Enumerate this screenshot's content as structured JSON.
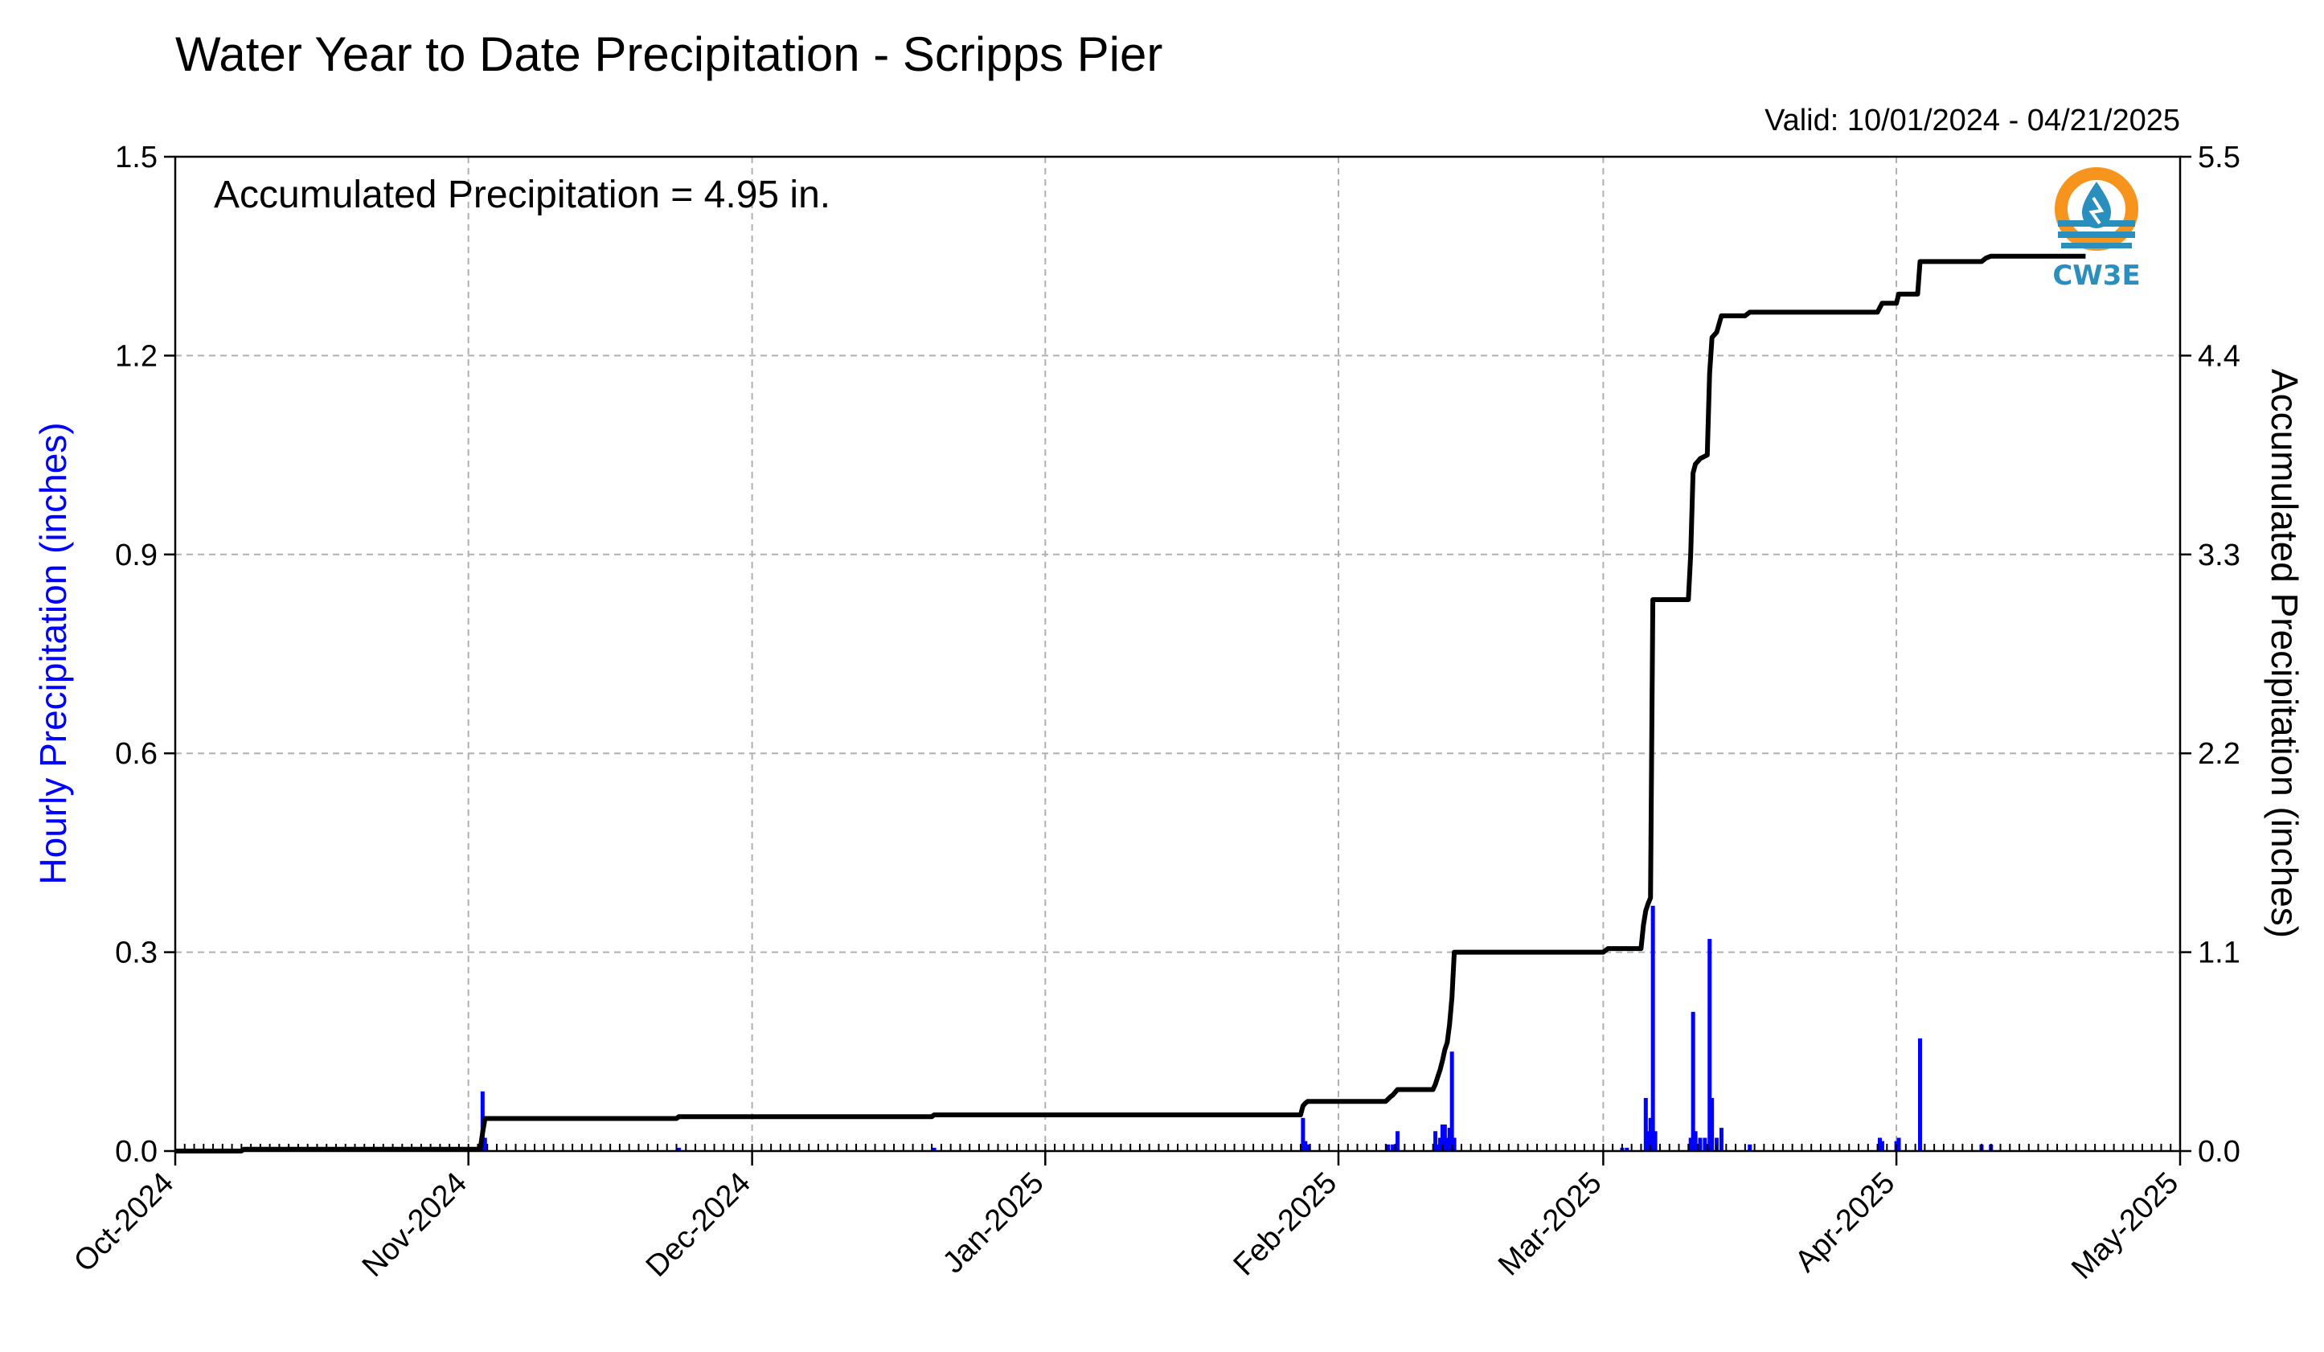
{
  "colors": {
    "hourly": "#0000ff",
    "accumulated": "#000000",
    "grid": "#b0b0b0",
    "logo_orange": "#f7941d",
    "logo_teal": "#2a8fbd"
  },
  "logo": {
    "text": "CW3E",
    "icon": "water-drop-logo-icon"
  },
  "chart_data": {
    "type": "bar+line",
    "title": "Water Year to Date Precipitation - Scripps Pier",
    "subtitle": "Valid: 10/01/2024 - 04/21/2025",
    "annotation": "Accumulated Precipitation = 4.95 in.",
    "ylabel_left": "Hourly Precipitation (inches)",
    "ylabel_right": "Accumulated Precipitation (inches)",
    "ylim_left": [
      0,
      1.5
    ],
    "ylim_right": [
      0,
      5.5
    ],
    "xlim": [
      "2024-10-01",
      "2025-05-01"
    ],
    "yticks_left": [
      "0.0",
      "0.3",
      "0.6",
      "0.9",
      "1.2",
      "1.5"
    ],
    "yticks_right": [
      "0.0",
      "1.1",
      "2.2",
      "3.3",
      "4.4",
      "5.5"
    ],
    "xticks": [
      {
        "date": "2024-10-01",
        "label": "Oct-2024"
      },
      {
        "date": "2024-11-01",
        "label": "Nov-2024"
      },
      {
        "date": "2024-12-01",
        "label": "Dec-2024"
      },
      {
        "date": "2025-01-01",
        "label": "Jan-2025"
      },
      {
        "date": "2025-02-01",
        "label": "Feb-2025"
      },
      {
        "date": "2025-03-01",
        "label": "Mar-2025"
      },
      {
        "date": "2025-04-01",
        "label": "Apr-2025"
      },
      {
        "date": "2025-05-01",
        "label": "May-2025"
      }
    ],
    "grid": true,
    "hourly_series": {
      "name": "Hourly Precipitation",
      "points": [
        [
          "2024-10-08T00",
          0.003
        ],
        [
          "2024-11-02T12",
          0.09
        ],
        [
          "2024-11-02T18",
          0.02
        ],
        [
          "2024-11-23T06",
          0.005
        ],
        [
          "2024-12-20T06",
          0.005
        ],
        [
          "2025-01-28T06",
          0.05
        ],
        [
          "2025-01-28T12",
          0.015
        ],
        [
          "2025-01-28T18",
          0.01
        ],
        [
          "2025-02-06T06",
          0.01
        ],
        [
          "2025-02-06T18",
          0.01
        ],
        [
          "2025-02-07T06",
          0.03
        ],
        [
          "2025-02-11T06",
          0.03
        ],
        [
          "2025-02-11T12",
          0.01
        ],
        [
          "2025-02-11T18",
          0.02
        ],
        [
          "2025-02-12T00",
          0.04
        ],
        [
          "2025-02-12T06",
          0.04
        ],
        [
          "2025-02-12T12",
          0.02
        ],
        [
          "2025-02-12T18",
          0.035
        ],
        [
          "2025-02-13T00",
          0.15
        ],
        [
          "2025-02-13T06",
          0.02
        ],
        [
          "2025-03-03T00",
          0.005
        ],
        [
          "2025-03-03T12",
          0.005
        ],
        [
          "2025-03-05T12",
          0.08
        ],
        [
          "2025-03-05T18",
          0.03
        ],
        [
          "2025-03-06T00",
          0.05
        ],
        [
          "2025-03-06T06",
          0.37
        ],
        [
          "2025-03-06T12",
          0.03
        ],
        [
          "2025-03-10T06",
          0.02
        ],
        [
          "2025-03-10T12",
          0.21
        ],
        [
          "2025-03-10T18",
          0.03
        ],
        [
          "2025-03-11T06",
          0.02
        ],
        [
          "2025-03-11T18",
          0.02
        ],
        [
          "2025-03-12T06",
          0.32
        ],
        [
          "2025-03-12T12",
          0.08
        ],
        [
          "2025-03-13T00",
          0.02
        ],
        [
          "2025-03-13T12",
          0.035
        ],
        [
          "2025-03-16T12",
          0.01
        ],
        [
          "2025-03-30T06",
          0.02
        ],
        [
          "2025-03-30T12",
          0.015
        ],
        [
          "2025-04-01T00",
          0.015
        ],
        [
          "2025-04-01T06",
          0.02
        ],
        [
          "2025-04-03T12",
          0.17
        ],
        [
          "2025-04-10T00",
          0.01
        ],
        [
          "2025-04-11T00",
          0.01
        ]
      ]
    },
    "accumulated_series": {
      "name": "Accumulated Precipitation",
      "points": [
        [
          "2024-10-01T00",
          0.0
        ],
        [
          "2024-10-08T00",
          0.0
        ],
        [
          "2024-10-08T06",
          0.01
        ],
        [
          "2024-11-02T06",
          0.01
        ],
        [
          "2024-11-02T12",
          0.1
        ],
        [
          "2024-11-02T18",
          0.18
        ],
        [
          "2024-11-23T00",
          0.18
        ],
        [
          "2024-11-23T06",
          0.19
        ],
        [
          "2024-12-20T00",
          0.19
        ],
        [
          "2024-12-20T06",
          0.2
        ],
        [
          "2025-01-28T00",
          0.2
        ],
        [
          "2025-01-28T06",
          0.25
        ],
        [
          "2025-01-28T12",
          0.265
        ],
        [
          "2025-01-28T18",
          0.275
        ],
        [
          "2025-02-06T00",
          0.275
        ],
        [
          "2025-02-06T12",
          0.3
        ],
        [
          "2025-02-06T18",
          0.31
        ],
        [
          "2025-02-07T06",
          0.34
        ],
        [
          "2025-02-11T00",
          0.34
        ],
        [
          "2025-02-11T06",
          0.37
        ],
        [
          "2025-02-11T12",
          0.41
        ],
        [
          "2025-02-11T18",
          0.45
        ],
        [
          "2025-02-12T00",
          0.5
        ],
        [
          "2025-02-12T06",
          0.56
        ],
        [
          "2025-02-12T12",
          0.6
        ],
        [
          "2025-02-12T18",
          0.7
        ],
        [
          "2025-02-13T00",
          0.85
        ],
        [
          "2025-02-13T06",
          1.1
        ],
        [
          "2025-03-01T00",
          1.1
        ],
        [
          "2025-03-01T12",
          1.12
        ],
        [
          "2025-03-05T00",
          1.12
        ],
        [
          "2025-03-05T06",
          1.25
        ],
        [
          "2025-03-05T12",
          1.33
        ],
        [
          "2025-03-05T18",
          1.37
        ],
        [
          "2025-03-06T00",
          1.4
        ],
        [
          "2025-03-06T06",
          3.05
        ],
        [
          "2025-03-10T00",
          3.05
        ],
        [
          "2025-03-10T06",
          3.3
        ],
        [
          "2025-03-10T12",
          3.75
        ],
        [
          "2025-03-10T18",
          3.8
        ],
        [
          "2025-03-11T06",
          3.83
        ],
        [
          "2025-03-12T00",
          3.85
        ],
        [
          "2025-03-12T06",
          4.3
        ],
        [
          "2025-03-12T12",
          4.5
        ],
        [
          "2025-03-13T00",
          4.53
        ],
        [
          "2025-03-13T12",
          4.62
        ],
        [
          "2025-03-16T00",
          4.62
        ],
        [
          "2025-03-16T12",
          4.64
        ],
        [
          "2025-03-30T00",
          4.64
        ],
        [
          "2025-03-30T12",
          4.69
        ],
        [
          "2025-04-01T00",
          4.69
        ],
        [
          "2025-04-01T06",
          4.74
        ],
        [
          "2025-04-03T06",
          4.74
        ],
        [
          "2025-04-03T12",
          4.92
        ],
        [
          "2025-04-10T00",
          4.92
        ],
        [
          "2025-04-10T12",
          4.94
        ],
        [
          "2025-04-11T00",
          4.95
        ],
        [
          "2025-04-21T00",
          4.95
        ]
      ]
    }
  }
}
